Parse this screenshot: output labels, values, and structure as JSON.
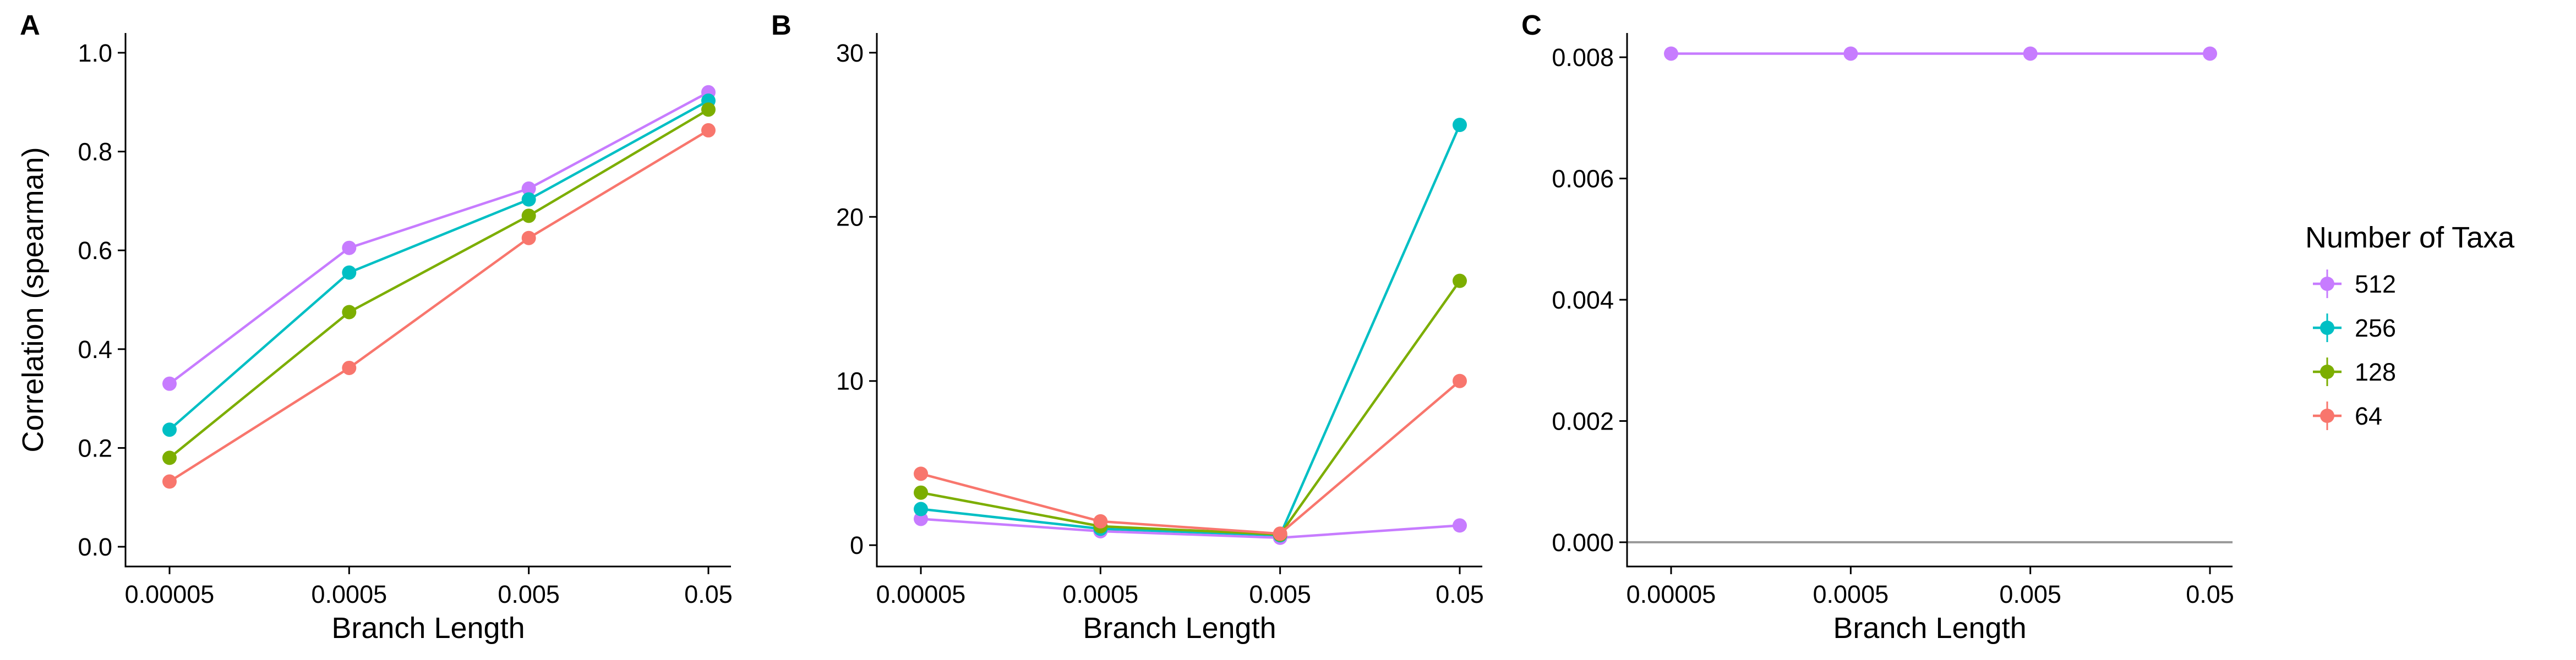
{
  "legend": {
    "title": "Number of Taxa",
    "position": "right",
    "entries": [
      {
        "label": "512",
        "color": "#C77CFF"
      },
      {
        "label": "256",
        "color": "#00BFC4"
      },
      {
        "label": "128",
        "color": "#7CAE00"
      },
      {
        "label": "64",
        "color": "#F8766D"
      }
    ]
  },
  "chart_data": [
    {
      "panel": "A",
      "type": "line",
      "title": "",
      "xlabel": "Branch Length",
      "ylabel": "Correlation (spearman)",
      "categories": [
        "0.00005",
        "0.0005",
        "0.005",
        "0.05"
      ],
      "ylim": [
        -0.04,
        1.04
      ],
      "yticks": [
        0.0,
        0.2,
        0.4,
        0.6,
        0.8,
        1.0
      ],
      "ytick_labels": [
        "0.0",
        "0.2",
        "0.4",
        "0.6",
        "0.8",
        "1.0"
      ],
      "grid": false,
      "series": [
        {
          "name": "512",
          "color": "#C77CFF",
          "values": [
            0.33,
            0.605,
            0.725,
            0.92
          ]
        },
        {
          "name": "256",
          "color": "#00BFC4",
          "values": [
            0.237,
            0.555,
            0.703,
            0.903
          ]
        },
        {
          "name": "128",
          "color": "#7CAE00",
          "values": [
            0.18,
            0.475,
            0.67,
            0.885
          ]
        },
        {
          "name": "64",
          "color": "#F8766D",
          "values": [
            0.132,
            0.362,
            0.625,
            0.843
          ]
        }
      ]
    },
    {
      "panel": "B",
      "type": "line",
      "title": "",
      "xlabel": "Branch Length",
      "ylabel": "",
      "categories": [
        "0.00005",
        "0.0005",
        "0.005",
        "0.05"
      ],
      "ylim": [
        -1.3,
        31.2
      ],
      "yticks": [
        0,
        10,
        20,
        30
      ],
      "ytick_labels": [
        "0",
        "10",
        "20",
        "30"
      ],
      "grid": false,
      "series": [
        {
          "name": "512",
          "color": "#C77CFF",
          "values": [
            1.6,
            0.85,
            0.45,
            1.2
          ]
        },
        {
          "name": "256",
          "color": "#00BFC4",
          "values": [
            2.2,
            1.0,
            0.6,
            25.6
          ]
        },
        {
          "name": "128",
          "color": "#7CAE00",
          "values": [
            3.2,
            1.15,
            0.65,
            16.1
          ]
        },
        {
          "name": "64",
          "color": "#F8766D",
          "values": [
            4.35,
            1.45,
            0.7,
            10.0
          ]
        }
      ]
    },
    {
      "panel": "C",
      "type": "line",
      "title": "",
      "xlabel": "Branch Length",
      "ylabel": "",
      "categories": [
        "0.00005",
        "0.0005",
        "0.005",
        "0.05"
      ],
      "ylim": [
        -0.0004,
        0.0084
      ],
      "yticks": [
        0.0,
        0.002,
        0.004,
        0.006,
        0.008
      ],
      "ytick_labels": [
        "0.000",
        "0.002",
        "0.004",
        "0.006",
        "0.008"
      ],
      "grid": false,
      "reference_line": {
        "y": 0,
        "color": "#999999"
      },
      "series": [
        {
          "name": "512",
          "color": "#C77CFF",
          "values": [
            0.00806,
            0.00806,
            0.00806,
            0.00806
          ]
        }
      ]
    }
  ]
}
